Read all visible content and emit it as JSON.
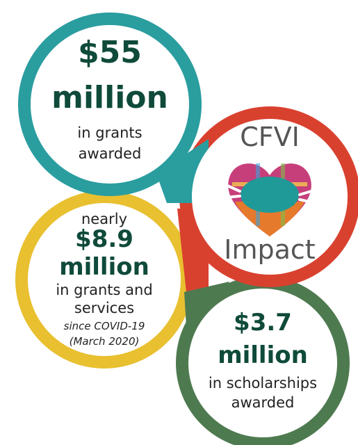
{
  "grants": {
    "title": "$55",
    "subtitle": "million",
    "caption": [
      "in grants",
      "awarded"
    ]
  },
  "center": {
    "title": "CFVI",
    "subtitle": "Impact"
  },
  "covid": {
    "prefix": "nearly",
    "title": "$8.9",
    "subtitle": "million",
    "caption": [
      "in grants and",
      "services"
    ],
    "note": [
      "since COVID-19",
      "(March 2020)"
    ]
  },
  "scholarships": {
    "title": "$3.7",
    "subtitle": "million",
    "caption": [
      "in scholarships",
      "awarded"
    ]
  }
}
